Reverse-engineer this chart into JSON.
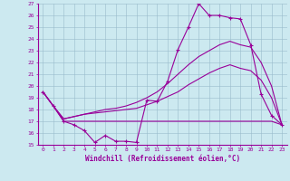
{
  "xlabel": "Windchill (Refroidissement éolien,°C)",
  "background_color": "#cce9f0",
  "line_color": "#990099",
  "grid_color": "#99bbcc",
  "xlim": [
    -0.5,
    23.5
  ],
  "ylim": [
    15,
    27
  ],
  "yticks": [
    15,
    16,
    17,
    18,
    19,
    20,
    21,
    22,
    23,
    24,
    25,
    26,
    27
  ],
  "xticks": [
    0,
    1,
    2,
    3,
    4,
    5,
    6,
    7,
    8,
    9,
    10,
    11,
    12,
    13,
    14,
    15,
    16,
    17,
    18,
    19,
    20,
    21,
    22,
    23
  ],
  "line1_x": [
    0,
    1,
    2,
    3,
    4,
    5,
    6,
    7,
    8,
    9,
    10,
    11,
    12,
    13,
    14,
    15,
    16,
    17,
    18,
    19,
    20,
    21,
    22,
    23
  ],
  "line1_y": [
    19.5,
    18.3,
    17.0,
    16.7,
    16.2,
    15.2,
    15.8,
    15.3,
    15.3,
    15.2,
    18.8,
    18.7,
    20.4,
    23.1,
    25.0,
    27.0,
    26.0,
    26.0,
    25.8,
    25.7,
    23.5,
    19.3,
    17.5,
    16.7
  ],
  "line2_x": [
    0,
    1,
    2,
    3,
    4,
    5,
    6,
    7,
    8,
    9,
    10,
    11,
    12,
    13,
    14,
    15,
    16,
    17,
    18,
    19,
    20,
    21,
    22,
    23
  ],
  "line2_y": [
    19.5,
    18.3,
    17.0,
    17.0,
    17.0,
    17.0,
    17.0,
    17.0,
    17.0,
    17.0,
    17.0,
    17.0,
    17.0,
    17.0,
    17.0,
    17.0,
    17.0,
    17.0,
    17.0,
    17.0,
    17.0,
    17.0,
    17.0,
    16.7
  ],
  "line3_x": [
    0,
    1,
    2,
    3,
    4,
    5,
    6,
    7,
    8,
    9,
    10,
    11,
    12,
    13,
    14,
    15,
    16,
    17,
    18,
    19,
    20,
    21,
    22,
    23
  ],
  "line3_y": [
    19.5,
    18.3,
    17.2,
    17.4,
    17.6,
    17.7,
    17.8,
    17.9,
    18.0,
    18.1,
    18.4,
    18.7,
    19.1,
    19.5,
    20.1,
    20.6,
    21.1,
    21.5,
    21.8,
    21.5,
    21.3,
    20.5,
    19.0,
    16.7
  ],
  "line4_x": [
    0,
    1,
    2,
    3,
    4,
    5,
    6,
    7,
    8,
    9,
    10,
    11,
    12,
    13,
    14,
    15,
    16,
    17,
    18,
    19,
    20,
    21,
    22,
    23
  ],
  "line4_y": [
    19.5,
    18.3,
    17.2,
    17.4,
    17.6,
    17.8,
    18.0,
    18.1,
    18.3,
    18.6,
    19.0,
    19.5,
    20.2,
    21.0,
    21.8,
    22.5,
    23.0,
    23.5,
    23.8,
    23.5,
    23.3,
    22.0,
    20.0,
    16.7
  ]
}
